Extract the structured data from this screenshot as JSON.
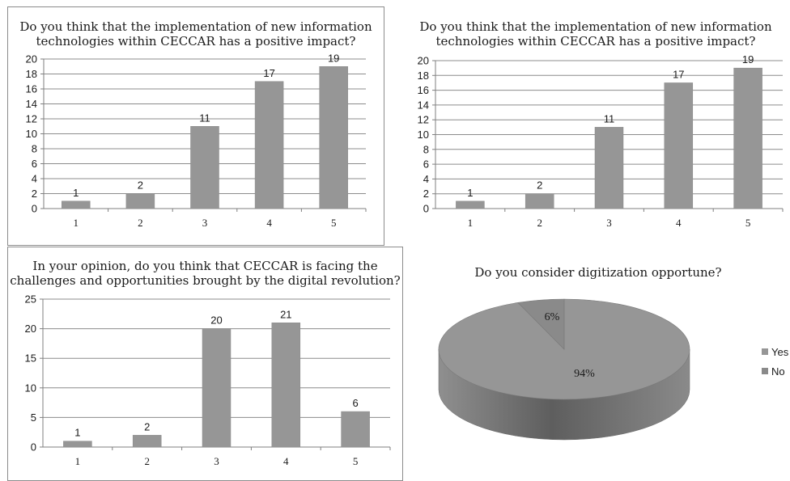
{
  "chart_data": [
    {
      "type": "bar",
      "title": [
        "Do you think that the implementation of new information",
        "technologies within CECCAR has a positive impact?"
      ],
      "categories": [
        "1",
        "2",
        "3",
        "4",
        "5"
      ],
      "values": [
        1,
        2,
        11,
        17,
        19
      ],
      "ylim": [
        0,
        20
      ],
      "yticks": [
        0,
        2,
        4,
        6,
        8,
        10,
        12,
        14,
        16,
        18,
        20
      ],
      "grid": true,
      "color": "#969696"
    },
    {
      "type": "bar",
      "title": [
        "Do you think that the implementation of new information",
        "technologies within CECCAR has a positive impact?"
      ],
      "categories": [
        "1",
        "2",
        "3",
        "4",
        "5"
      ],
      "values": [
        1,
        2,
        11,
        17,
        19
      ],
      "ylim": [
        0,
        20
      ],
      "yticks": [
        0,
        2,
        4,
        6,
        8,
        10,
        12,
        14,
        16,
        18,
        20
      ],
      "grid": true,
      "color": "#969696"
    },
    {
      "type": "bar",
      "title": [
        "In your opinion, do you think that CECCAR is facing the",
        "challenges and opportunities brought by the digital revolution?"
      ],
      "categories": [
        "1",
        "2",
        "3",
        "4",
        "5"
      ],
      "values": [
        1,
        2,
        20,
        21,
        6
      ],
      "ylim": [
        0,
        25
      ],
      "yticks": [
        0,
        5,
        10,
        15,
        20,
        25
      ],
      "grid": true,
      "color": "#969696"
    },
    {
      "type": "pie",
      "title": "Do you consider digitization  opportune?",
      "categories": [
        "Yes",
        "No"
      ],
      "values": [
        94,
        6
      ],
      "labels": [
        "94%",
        "6%"
      ],
      "legend": "right",
      "colors": [
        "#969696",
        "#8a8a8a"
      ]
    }
  ]
}
